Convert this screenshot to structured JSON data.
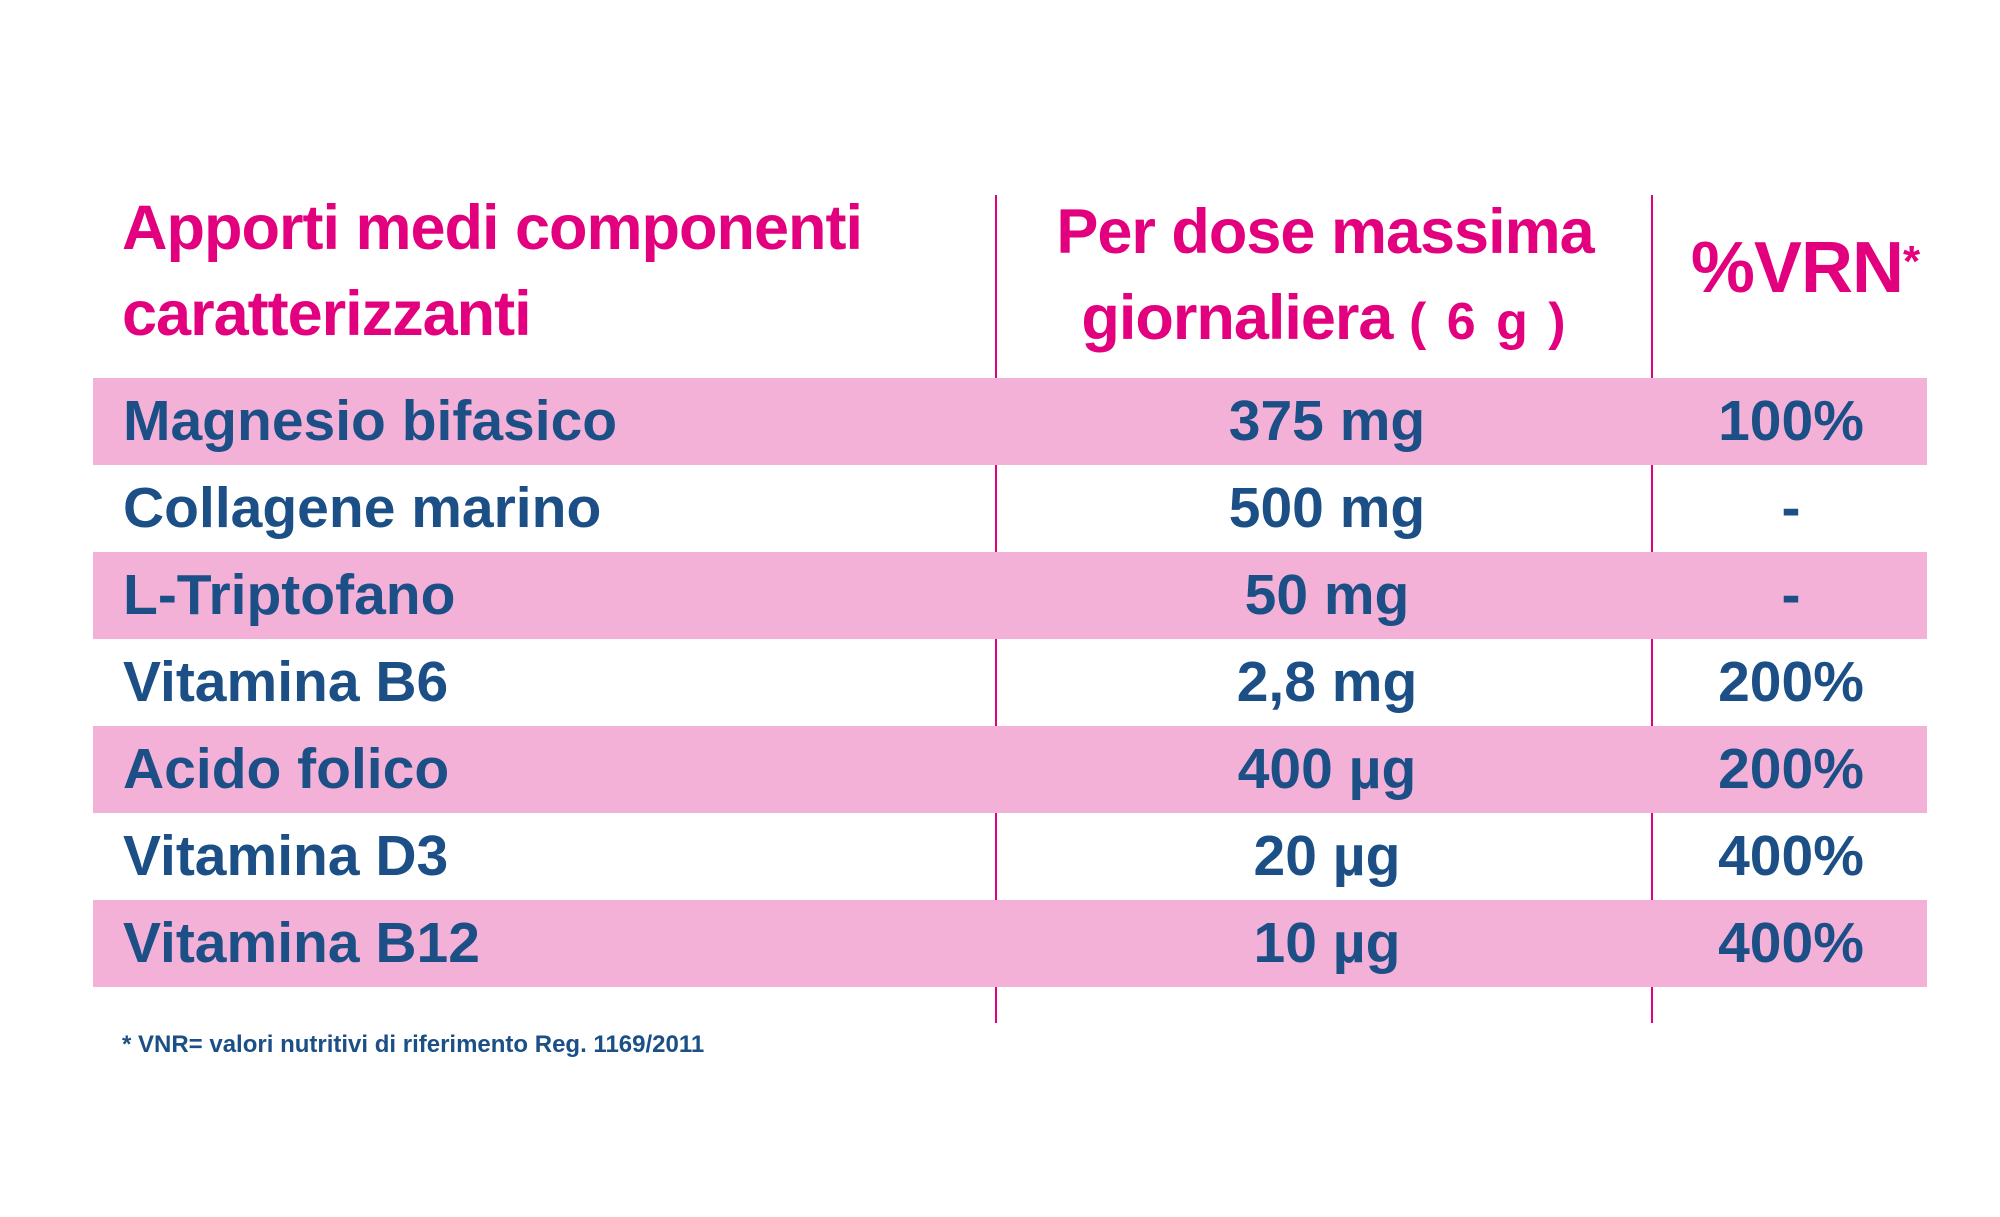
{
  "header": {
    "col1": [
      "Apporti medi componenti",
      "caratterizzanti"
    ],
    "col2_line1": "Per dose massima",
    "col2_line2_text": "giornaliera",
    "col2_line2_dose": "( 6 g )",
    "col3_text": "%VRN",
    "col3_mark": "*"
  },
  "rows": [
    {
      "name": "Magnesio bifasico",
      "dose": "375 mg",
      "vrn": "100%"
    },
    {
      "name": "Collagene marino",
      "dose": "500 mg",
      "vrn": "-"
    },
    {
      "name": "L-Triptofano",
      "dose": "50 mg",
      "vrn": "-"
    },
    {
      "name": "Vitamina B6",
      "dose": "2,8 mg",
      "vrn": "200%"
    },
    {
      "name": "Acido folico",
      "dose": "400 µg",
      "vrn": "200%"
    },
    {
      "name": "Vitamina D3",
      "dose": "20 µg",
      "vrn": "400%"
    },
    {
      "name": "Vitamina B12",
      "dose": "10 µg",
      "vrn": "400%"
    }
  ],
  "footnote": "* VNR= valori nutritivi di riferimento Reg. 1169/2011",
  "colors": {
    "accent_pink": "#e3007e",
    "row_shade": "#f3b1d8",
    "text_blue": "#1b4f85"
  }
}
